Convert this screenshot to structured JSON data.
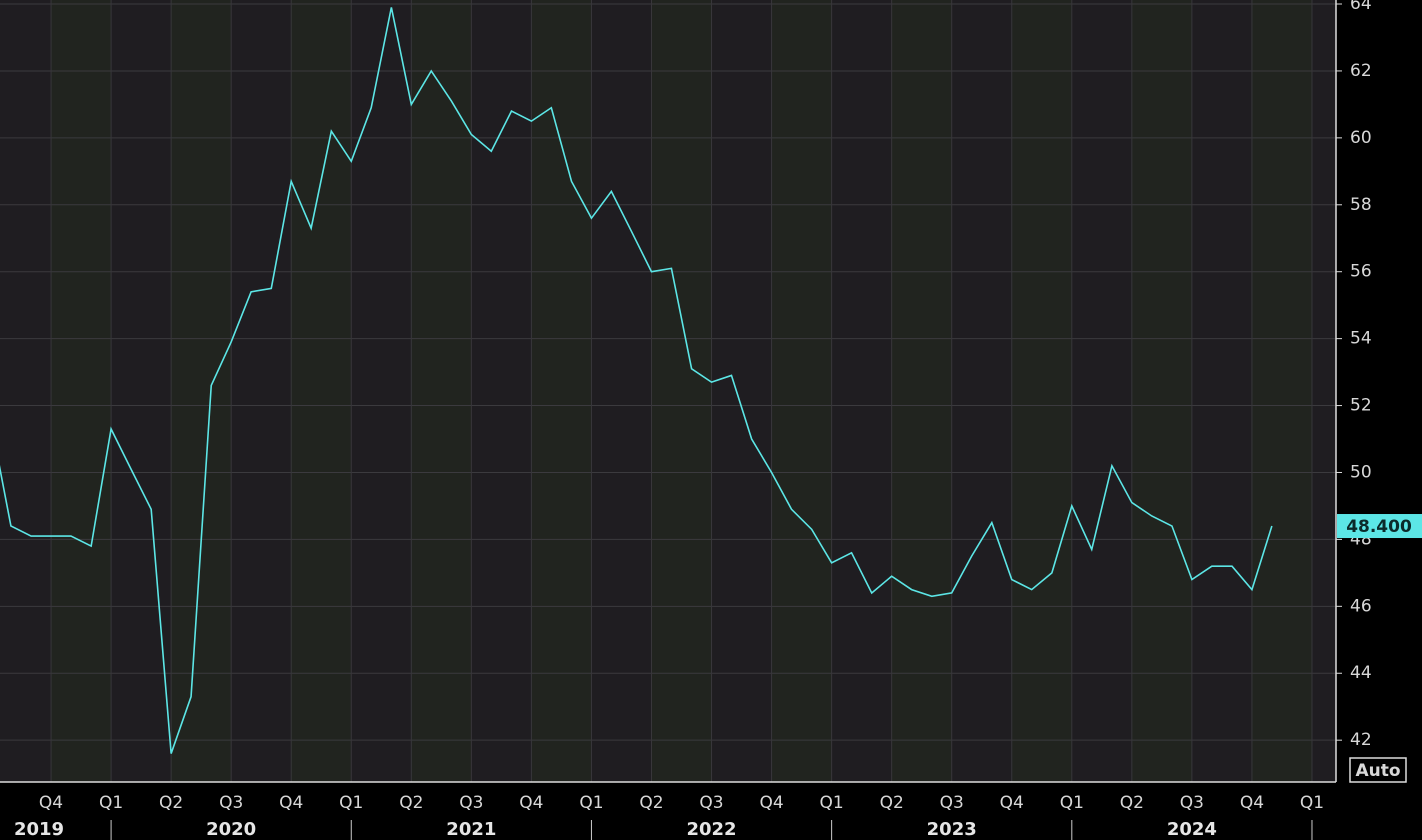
{
  "chart_data": {
    "type": "line",
    "x": [
      2019.5,
      2019.583,
      2019.667,
      2019.75,
      2019.833,
      2019.917,
      2020.0,
      2020.083,
      2020.167,
      2020.25,
      2020.333,
      2020.417,
      2020.5,
      2020.583,
      2020.667,
      2020.75,
      2020.833,
      2020.917,
      2021.0,
      2021.083,
      2021.167,
      2021.25,
      2021.333,
      2021.417,
      2021.5,
      2021.583,
      2021.667,
      2021.75,
      2021.833,
      2021.917,
      2022.0,
      2022.083,
      2022.167,
      2022.25,
      2022.333,
      2022.417,
      2022.5,
      2022.583,
      2022.667,
      2022.75,
      2022.833,
      2022.917,
      2023.0,
      2023.083,
      2023.167,
      2023.25,
      2023.333,
      2023.417,
      2023.5,
      2023.583,
      2023.667,
      2023.75,
      2023.833,
      2023.917,
      2024.0,
      2024.083,
      2024.167,
      2024.25,
      2024.333,
      2024.417,
      2024.5,
      2024.583,
      2024.667,
      2024.75,
      2024.833
    ],
    "series": [
      {
        "color": "#5ce6e6",
        "values": [
          51.5,
          48.4,
          48.1,
          48.1,
          48.1,
          47.8,
          51.3,
          50.1,
          48.9,
          41.6,
          43.3,
          52.6,
          53.9,
          55.4,
          55.5,
          58.7,
          57.3,
          60.2,
          59.3,
          60.9,
          63.9,
          61.0,
          62.0,
          61.1,
          60.1,
          59.6,
          60.8,
          60.5,
          60.9,
          58.7,
          57.6,
          58.4,
          57.2,
          56.0,
          56.1,
          53.1,
          52.7,
          52.9,
          51.0,
          50.0,
          48.9,
          48.3,
          47.3,
          47.6,
          46.4,
          46.9,
          46.5,
          46.3,
          46.4,
          47.5,
          48.5,
          46.8,
          46.5,
          47.0,
          49.0,
          47.7,
          50.2,
          49.1,
          48.7,
          48.4,
          46.8,
          47.2,
          47.2,
          46.5,
          48.4
        ]
      }
    ],
    "last_value": {
      "value": 48.4,
      "label": "48.400"
    },
    "xlim": [
      2019.5375,
      2025.1
    ],
    "xticks": [
      {
        "value": 2019.75,
        "label": "Q4"
      },
      {
        "value": 2020,
        "label": "Q1"
      },
      {
        "value": 2020.25,
        "label": "Q2"
      },
      {
        "value": 2020.5,
        "label": "Q3"
      },
      {
        "value": 2020.75,
        "label": "Q4"
      },
      {
        "value": 2021,
        "label": "Q1"
      },
      {
        "value": 2021.25,
        "label": "Q2"
      },
      {
        "value": 2021.5,
        "label": "Q3"
      },
      {
        "value": 2021.75,
        "label": "Q4"
      },
      {
        "value": 2022,
        "label": "Q1"
      },
      {
        "value": 2022.25,
        "label": "Q2"
      },
      {
        "value": 2022.5,
        "label": "Q3"
      },
      {
        "value": 2022.75,
        "label": "Q4"
      },
      {
        "value": 2023,
        "label": "Q1"
      },
      {
        "value": 2023.25,
        "label": "Q2"
      },
      {
        "value": 2023.5,
        "label": "Q3"
      },
      {
        "value": 2023.75,
        "label": "Q4"
      },
      {
        "value": 2024,
        "label": "Q1"
      },
      {
        "value": 2024.25,
        "label": "Q2"
      },
      {
        "value": 2024.5,
        "label": "Q3"
      },
      {
        "value": 2024.75,
        "label": "Q4"
      },
      {
        "value": 2025,
        "label": "Q1"
      }
    ],
    "year_ticks": [
      {
        "value": 2019.7,
        "label": "2019"
      },
      {
        "value": 2020.5,
        "label": "2020"
      },
      {
        "value": 2021.5,
        "label": "2021"
      },
      {
        "value": 2022.5,
        "label": "2022"
      },
      {
        "value": 2023.5,
        "label": "2023"
      },
      {
        "value": 2024.5,
        "label": "2024"
      }
    ],
    "ylim": [
      40.75,
      64.12
    ],
    "yticks": [
      42,
      44,
      46,
      48,
      50,
      52,
      54,
      56,
      58,
      60,
      62,
      64
    ],
    "grid": true,
    "scale_button": "Auto"
  }
}
